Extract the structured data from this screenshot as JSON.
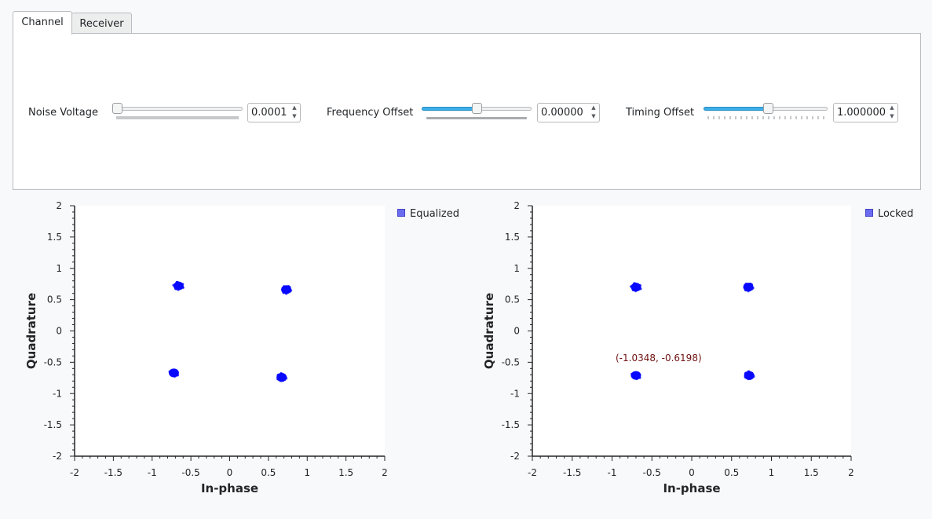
{
  "tabs": [
    {
      "label": "Channel",
      "active": true
    },
    {
      "label": "Receiver",
      "active": false
    }
  ],
  "controls": {
    "noise_voltage": {
      "label": "Noise Voltage",
      "value": "0.0001",
      "level": 0.0
    },
    "frequency_offset": {
      "label": "Frequency Offset",
      "value": "0.00000",
      "level": 0.5
    },
    "timing_offset": {
      "label": "Timing Offset",
      "value": "1.000000",
      "level": 0.52
    }
  },
  "plots": [
    {
      "xlabel": "In-phase",
      "ylabel": "Quadrature",
      "legend": "Equalized",
      "xlim": [
        -2,
        2
      ],
      "ylim": [
        -2,
        2
      ],
      "ticks_x": [
        "-2",
        "-1.5",
        "-1",
        "-0.5",
        "0",
        "0.5",
        "1",
        "1.5",
        "2"
      ],
      "ticks_y": [
        "2",
        "1.5",
        "1",
        "0.5",
        "0",
        "-0.5",
        "-1",
        "-1.5",
        "-2"
      ],
      "clusters": [
        {
          "x": -0.66,
          "y": 0.72
        },
        {
          "x": 0.73,
          "y": 0.66
        },
        {
          "x": -0.72,
          "y": -0.67
        },
        {
          "x": 0.67,
          "y": -0.74
        }
      ],
      "point_color": "#0a0aff"
    },
    {
      "xlabel": "In-phase",
      "ylabel": "Quadrature",
      "legend": "Locked",
      "xlim": [
        -2,
        2
      ],
      "ylim": [
        -2,
        2
      ],
      "ticks_x": [
        "-2",
        "-1.5",
        "-1",
        "-0.5",
        "0",
        "0.5",
        "1",
        "1.5",
        "2"
      ],
      "ticks_y": [
        "2",
        "1.5",
        "1",
        "0.5",
        "0",
        "-0.5",
        "-1",
        "-1.5",
        "-2"
      ],
      "clusters": [
        {
          "x": -0.7,
          "y": 0.7
        },
        {
          "x": 0.71,
          "y": 0.7
        },
        {
          "x": -0.7,
          "y": -0.71
        },
        {
          "x": 0.72,
          "y": -0.71
        }
      ],
      "point_color": "#0a0aff",
      "cursor_readout": "(-1.0348, -0.6198)"
    }
  ]
}
